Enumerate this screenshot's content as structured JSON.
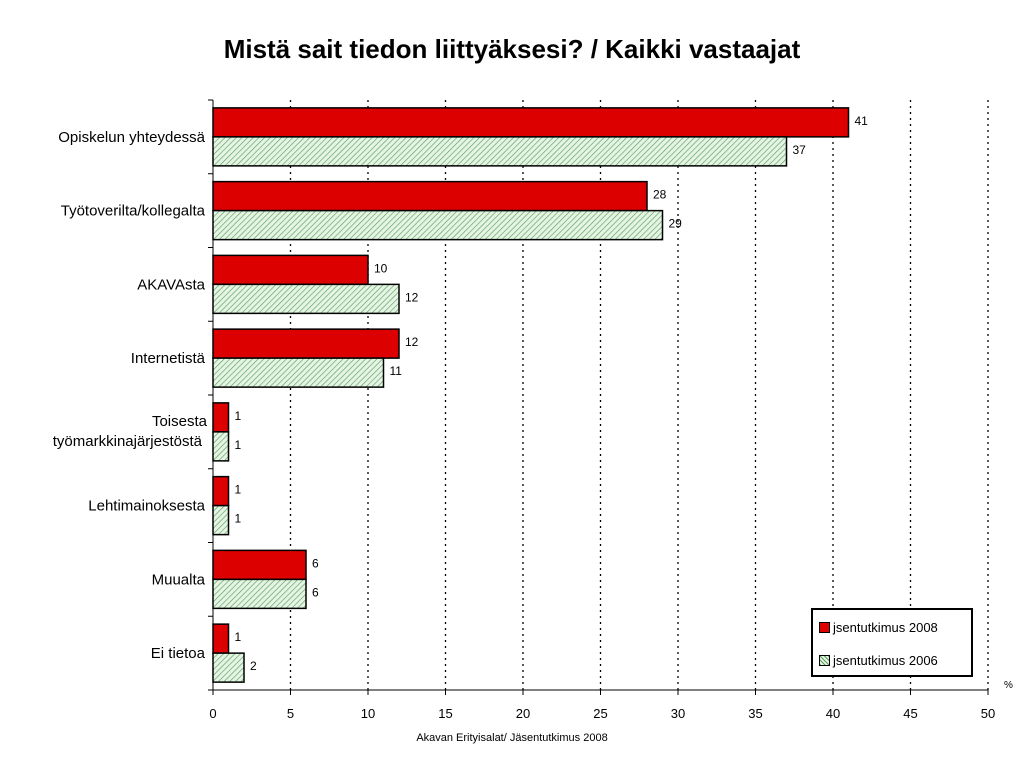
{
  "chart_data": {
    "type": "bar",
    "orientation": "horizontal",
    "title": "Mistä sait tiedon liittyäksesi? / Kaikki vastaajat",
    "categories": [
      "Opiskelun yhteydessä",
      "Työtoverilta/kollegalta",
      "AKAVAsta",
      "Internetistä",
      "Toisesta työmarkkinajärjestöstä",
      "Lehtimainoksesta",
      "Muualta",
      "Ei tietoa"
    ],
    "series": [
      {
        "name": "jsentutkimus 2008",
        "values": [
          41,
          28,
          10,
          12,
          1,
          1,
          6,
          1
        ],
        "color": "#dd0000",
        "pattern": "solid"
      },
      {
        "name": "jsentutkimus 2006",
        "values": [
          37,
          29,
          12,
          11,
          1,
          1,
          6,
          2
        ],
        "color": "#d4ecd4",
        "pattern": "diagonal-hatch-green"
      }
    ],
    "xlim": [
      0,
      50
    ],
    "xticks": [
      0,
      5,
      10,
      15,
      20,
      25,
      30,
      35,
      40,
      45,
      50
    ],
    "xunit": "%",
    "grid": "vertical-dotted",
    "legend": "bottom-right"
  },
  "footnote": "Akavan Erityisalat/ Jäsentutkimus 2008"
}
